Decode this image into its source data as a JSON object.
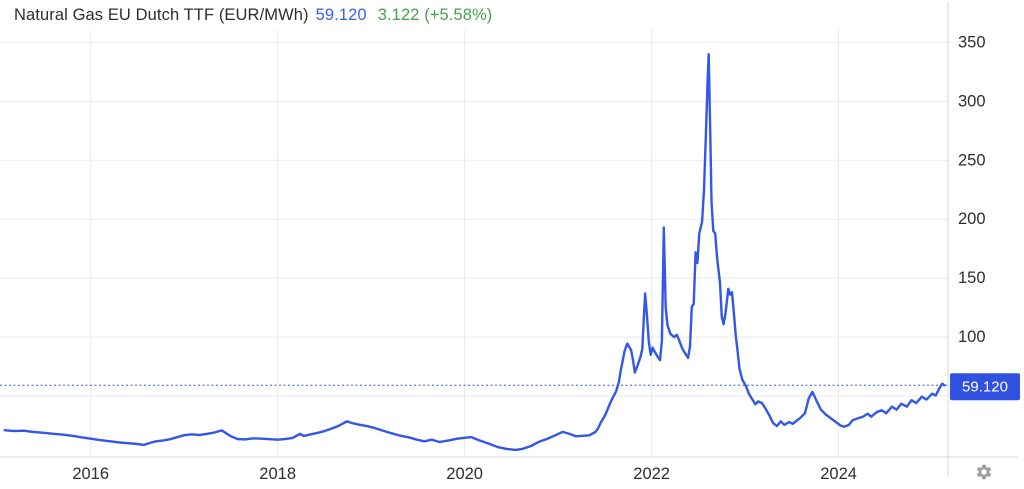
{
  "header": {
    "title": "Natural Gas EU Dutch TTF (EUR/MWh)",
    "price": "59.120",
    "change": "3.122 (+5.58%)"
  },
  "colors": {
    "line": "#3357e6",
    "price_text": "#3a5fe6",
    "change_text": "#45a24b",
    "badge_bg": "#3152e1",
    "badge_text": "#ffffff",
    "grid": "#e9e9e9",
    "axis_border": "#d8d8d8",
    "label": "#2e2e2e",
    "gear": "#9aa0a6",
    "background": "#ffffff"
  },
  "icons": {
    "settings": "gear"
  },
  "chart_data": {
    "type": "line",
    "title": "Natural Gas EU Dutch TTF (EUR/MWh)",
    "ylabel": "EUR/MWh",
    "xlim": [
      2015.03,
      2025.17
    ],
    "ylim": [
      0,
      386
    ],
    "grid": true,
    "legend": false,
    "x_ticks": [
      2016,
      2018,
      2020,
      2022,
      2024
    ],
    "x_tick_labels": [
      "2016",
      "2018",
      "2020",
      "2022",
      "2024"
    ],
    "y_ticks": [
      100,
      150,
      200,
      250,
      300,
      350
    ],
    "y_gridlines": [
      50,
      100,
      150,
      200,
      250,
      300,
      350
    ],
    "current_price": 59.12,
    "current_price_label": "59.120",
    "change_abs": 3.122,
    "change_pct": "+5.58%",
    "series": [
      {
        "name": "Natural Gas EU Dutch TTF",
        "points": [
          [
            2015.08,
            21
          ],
          [
            2015.18,
            20.3
          ],
          [
            2015.28,
            20.6
          ],
          [
            2015.39,
            19.5
          ],
          [
            2015.5,
            18.8
          ],
          [
            2015.6,
            18
          ],
          [
            2015.71,
            17.2
          ],
          [
            2015.82,
            16
          ],
          [
            2015.92,
            14.8
          ],
          [
            2016,
            13.8
          ],
          [
            2016.1,
            12.6
          ],
          [
            2016.21,
            11.6
          ],
          [
            2016.31,
            10.6
          ],
          [
            2016.42,
            9.9
          ],
          [
            2016.5,
            9.3
          ],
          [
            2016.57,
            8.6
          ],
          [
            2016.63,
            10.2
          ],
          [
            2016.7,
            11.6
          ],
          [
            2016.78,
            12.4
          ],
          [
            2016.85,
            13.4
          ],
          [
            2016.92,
            15
          ],
          [
            2017,
            16.8
          ],
          [
            2017.08,
            17.6
          ],
          [
            2017.16,
            16.9
          ],
          [
            2017.24,
            17.9
          ],
          [
            2017.32,
            19
          ],
          [
            2017.4,
            20.9
          ],
          [
            2017.45,
            18.4
          ],
          [
            2017.5,
            15.9
          ],
          [
            2017.57,
            13.6
          ],
          [
            2017.65,
            13.2
          ],
          [
            2017.73,
            14.1
          ],
          [
            2017.81,
            13.9
          ],
          [
            2017.9,
            13.5
          ],
          [
            2018,
            13
          ],
          [
            2018.08,
            13.5
          ],
          [
            2018.16,
            14.5
          ],
          [
            2018.24,
            18
          ],
          [
            2018.28,
            16.2
          ],
          [
            2018.35,
            17.5
          ],
          [
            2018.43,
            18.8
          ],
          [
            2018.51,
            20.5
          ],
          [
            2018.58,
            22.5
          ],
          [
            2018.66,
            25
          ],
          [
            2018.74,
            28.6
          ],
          [
            2018.8,
            27
          ],
          [
            2018.88,
            25.6
          ],
          [
            2018.96,
            24.4
          ],
          [
            2019.04,
            22.8
          ],
          [
            2019.12,
            20.8
          ],
          [
            2019.2,
            18.8
          ],
          [
            2019.3,
            16.6
          ],
          [
            2019.4,
            15
          ],
          [
            2019.49,
            13
          ],
          [
            2019.57,
            11.6
          ],
          [
            2019.65,
            13
          ],
          [
            2019.73,
            11
          ],
          [
            2019.83,
            12.4
          ],
          [
            2019.92,
            13.8
          ],
          [
            2020,
            14.6
          ],
          [
            2020.07,
            15.2
          ],
          [
            2020.15,
            12.6
          ],
          [
            2020.26,
            9.6
          ],
          [
            2020.36,
            6.6
          ],
          [
            2020.45,
            5.2
          ],
          [
            2020.54,
            4.3
          ],
          [
            2020.62,
            5.2
          ],
          [
            2020.71,
            7.6
          ],
          [
            2020.8,
            11.4
          ],
          [
            2020.88,
            13.6
          ],
          [
            2020.96,
            16.4
          ],
          [
            2021.05,
            19.6
          ],
          [
            2021.12,
            17.9
          ],
          [
            2021.19,
            15.9
          ],
          [
            2021.26,
            16.3
          ],
          [
            2021.33,
            16.6
          ],
          [
            2021.4,
            19.5
          ],
          [
            2021.43,
            23
          ],
          [
            2021.46,
            28
          ],
          [
            2021.49,
            32
          ],
          [
            2021.52,
            37
          ],
          [
            2021.55,
            43
          ],
          [
            2021.58,
            48
          ],
          [
            2021.62,
            54
          ],
          [
            2021.65,
            62
          ],
          [
            2021.67,
            72
          ],
          [
            2021.69,
            80
          ],
          [
            2021.71,
            88
          ],
          [
            2021.74,
            94.5
          ],
          [
            2021.78,
            89
          ],
          [
            2021.8,
            81
          ],
          [
            2021.82,
            70
          ],
          [
            2021.85,
            76
          ],
          [
            2021.88,
            83
          ],
          [
            2021.9,
            90
          ],
          [
            2021.93,
            137
          ],
          [
            2021.95,
            118
          ],
          [
            2021.97,
            96
          ],
          [
            2021.99,
            85
          ],
          [
            2022.01,
            91
          ],
          [
            2022.03,
            88
          ],
          [
            2022.06,
            84
          ],
          [
            2022.09,
            80.5
          ],
          [
            2022.11,
            97
          ],
          [
            2022.13,
            193
          ],
          [
            2022.15,
            125
          ],
          [
            2022.17,
            110
          ],
          [
            2022.2,
            103
          ],
          [
            2022.24,
            100
          ],
          [
            2022.27,
            102
          ],
          [
            2022.3,
            96
          ],
          [
            2022.33,
            90
          ],
          [
            2022.36,
            86
          ],
          [
            2022.39,
            82.5
          ],
          [
            2022.41,
            92
          ],
          [
            2022.43,
            126
          ],
          [
            2022.45,
            128
          ],
          [
            2022.47,
            172
          ],
          [
            2022.49,
            163
          ],
          [
            2022.51,
            188
          ],
          [
            2022.54,
            198
          ],
          [
            2022.56,
            225
          ],
          [
            2022.58,
            272
          ],
          [
            2022.6,
            320
          ],
          [
            2022.61,
            340
          ],
          [
            2022.63,
            262
          ],
          [
            2022.64,
            215
          ],
          [
            2022.66,
            190
          ],
          [
            2022.68,
            188
          ],
          [
            2022.7,
            167
          ],
          [
            2022.73,
            147
          ],
          [
            2022.75,
            117
          ],
          [
            2022.77,
            111
          ],
          [
            2022.79,
            120
          ],
          [
            2022.82,
            141
          ],
          [
            2022.84,
            136
          ],
          [
            2022.86,
            138
          ],
          [
            2022.88,
            120
          ],
          [
            2022.9,
            101
          ],
          [
            2022.92,
            88
          ],
          [
            2022.94,
            73
          ],
          [
            2022.97,
            64
          ],
          [
            2023.01,
            58
          ],
          [
            2023.04,
            52
          ],
          [
            2023.07,
            48
          ],
          [
            2023.11,
            43
          ],
          [
            2023.14,
            45.5
          ],
          [
            2023.18,
            44
          ],
          [
            2023.22,
            39
          ],
          [
            2023.26,
            33.5
          ],
          [
            2023.3,
            27
          ],
          [
            2023.34,
            24.5
          ],
          [
            2023.38,
            28.5
          ],
          [
            2023.42,
            25.5
          ],
          [
            2023.47,
            28
          ],
          [
            2023.51,
            26.5
          ],
          [
            2023.55,
            29
          ],
          [
            2023.59,
            31.5
          ],
          [
            2023.64,
            35.5
          ],
          [
            2023.68,
            48
          ],
          [
            2023.72,
            53.5
          ],
          [
            2023.77,
            45
          ],
          [
            2023.81,
            38.5
          ],
          [
            2023.86,
            34.5
          ],
          [
            2023.92,
            31
          ],
          [
            2023.97,
            28
          ],
          [
            2024.02,
            25
          ],
          [
            2024.06,
            24
          ],
          [
            2024.11,
            25.5
          ],
          [
            2024.15,
            29.5
          ],
          [
            2024.2,
            31
          ],
          [
            2024.26,
            32.5
          ],
          [
            2024.31,
            35
          ],
          [
            2024.35,
            32.5
          ],
          [
            2024.41,
            36.5
          ],
          [
            2024.46,
            38
          ],
          [
            2024.51,
            35.5
          ],
          [
            2024.57,
            41
          ],
          [
            2024.62,
            38.5
          ],
          [
            2024.67,
            43.5
          ],
          [
            2024.73,
            41
          ],
          [
            2024.78,
            46.5
          ],
          [
            2024.83,
            44
          ],
          [
            2024.89,
            49.5
          ],
          [
            2024.94,
            47
          ],
          [
            2025,
            52
          ],
          [
            2025.04,
            50.5
          ],
          [
            2025.08,
            57
          ],
          [
            2025.11,
            60.5
          ],
          [
            2025.13,
            59.12
          ]
        ]
      }
    ]
  }
}
